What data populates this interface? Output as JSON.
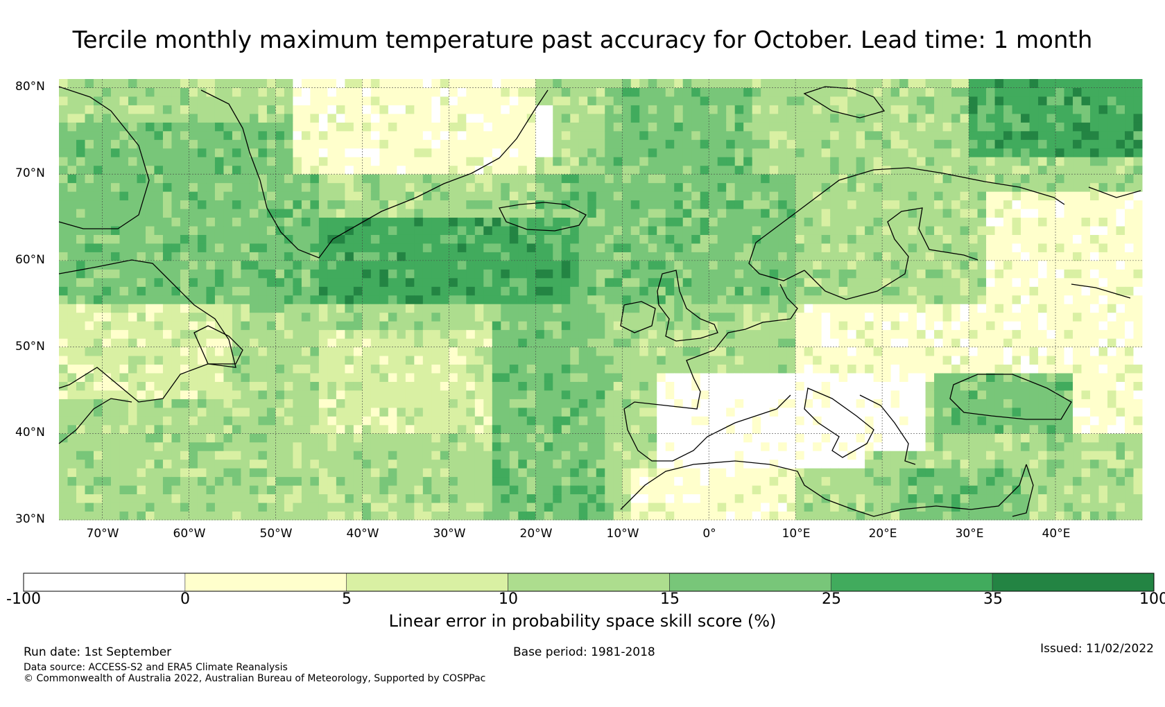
{
  "title": "Tercile monthly maximum temperature past accuracy for October. Lead time: 1 month",
  "map": {
    "lat_labels": [
      "80°N",
      "70°N",
      "60°N",
      "50°N",
      "40°N",
      "30°N"
    ],
    "lon_labels": [
      "70°W",
      "60°W",
      "50°W",
      "40°W",
      "30°W",
      "20°W",
      "10°W",
      "0°",
      "10°E",
      "20°E",
      "30°E",
      "40°E"
    ],
    "extent": {
      "lon_min": -75,
      "lon_max": 50,
      "lat_min": 30,
      "lat_max": 81
    }
  },
  "colorbar": {
    "ticks": [
      "-100",
      "0",
      "5",
      "10",
      "15",
      "25",
      "35",
      "100"
    ],
    "colors": [
      "#ffffff",
      "#ffffcc",
      "#d9f0a3",
      "#addd8e",
      "#78c679",
      "#41ab5d",
      "#238443"
    ],
    "label": "Linear error in probability space skill score (%)"
  },
  "footer": {
    "run_date": "Run date: 1st September",
    "base_period": "Base period: 1981-2018",
    "issued": "Issued: 11/02/2022",
    "data_source": "Data source: ACCESS-S2 and ERA5 Climate Reanalysis",
    "copyright": "© Commonwealth of Australia 2022, Australian Bureau of Meteorology, Supported by COSPPac"
  }
}
